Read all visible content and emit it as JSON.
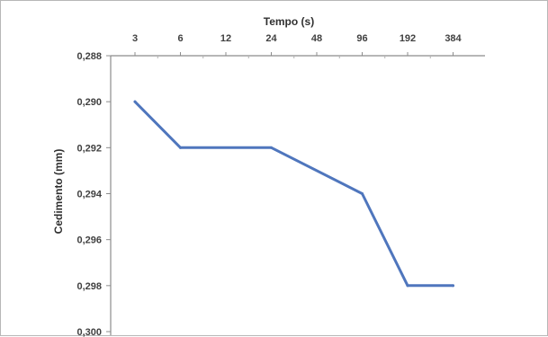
{
  "chart_data": {
    "type": "line",
    "xlabel": "Tempo (s)",
    "ylabel": "Cedimento (mm)",
    "x_scale": "log2",
    "x_ticks": [
      "3",
      "6",
      "12",
      "24",
      "48",
      "96",
      "192",
      "384"
    ],
    "y_ticks": [
      "0,288",
      "0,290",
      "0,292",
      "0,294",
      "0,296",
      "0,298",
      "0,300"
    ],
    "ylim": [
      0.288,
      0.3
    ],
    "y_inverted": true,
    "x_axis_position": "top",
    "grid": false,
    "legend": "none",
    "series": [
      {
        "color": "#4f76bd",
        "points": [
          {
            "x": 3,
            "y": 0.29
          },
          {
            "x": 6,
            "y": 0.292
          },
          {
            "x": 24,
            "y": 0.292
          },
          {
            "x": 96,
            "y": 0.294
          },
          {
            "x": 192,
            "y": 0.298
          },
          {
            "x": 384,
            "y": 0.298
          }
        ]
      }
    ]
  }
}
